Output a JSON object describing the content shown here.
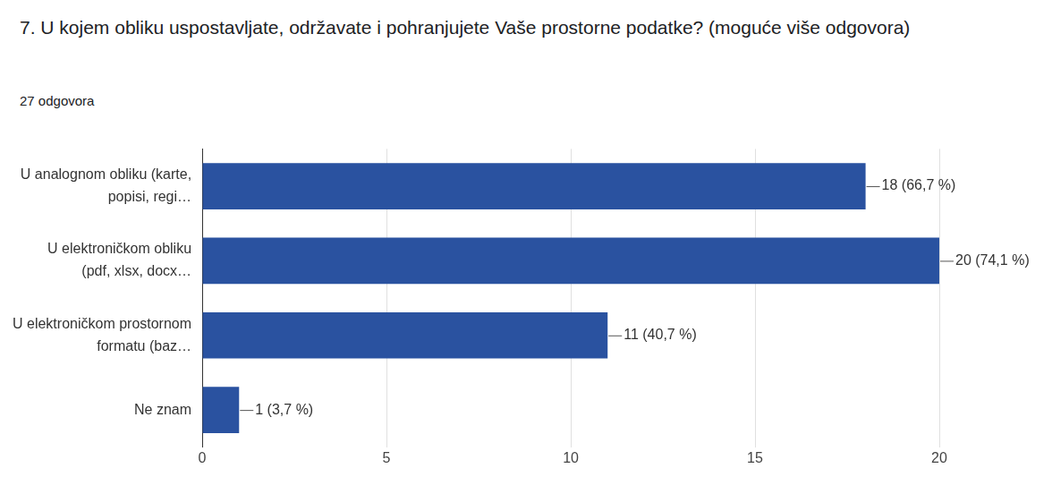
{
  "chart_data": {
    "type": "bar",
    "title": "7. U kojem obliku uspostavljate, održavate i pohranjujete Vaše prostorne podatke? (moguće više odgovora)",
    "subtitle": "27 odgovora",
    "categories": [
      "U analognom obliku (karte, popisi, regi…",
      "U elektroničkom obliku (pdf, xlsx, docx…",
      "U elektroničkom prostornom formatu (baz…",
      "Ne znam"
    ],
    "values": [
      18,
      20,
      11,
      1
    ],
    "value_labels": [
      "18 (66,7 %)",
      "20 (74,1 %)",
      "11 (40,7 %)",
      "1 (3,7 %)"
    ],
    "color": "#2a52a0",
    "orientation": "horizontal",
    "xlim": [
      0,
      20
    ],
    "xticks": [
      0,
      5,
      10,
      15,
      20
    ],
    "grid": true,
    "data_labels": true
  }
}
